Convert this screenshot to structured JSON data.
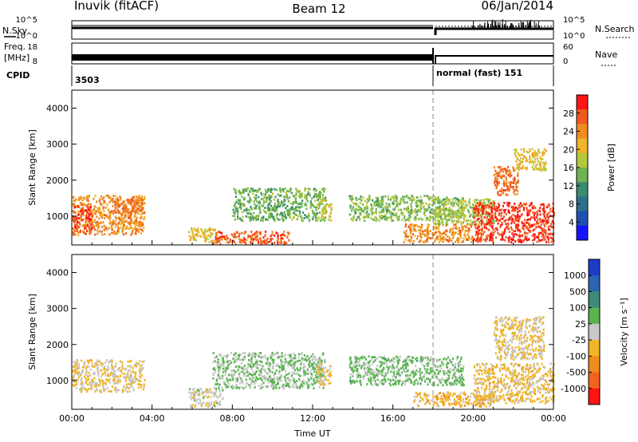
{
  "header": {
    "station": "Inuvik (fitACF)",
    "beam": "Beam 12",
    "date": "06/Jan/2014"
  },
  "status": {
    "nsky_label": "N.Sky",
    "nsearch_label": "N.Search",
    "freq_label_1": "Freq.",
    "freq_label_2": "[MHz]",
    "nave_label": "Nave",
    "cpid_label": "CPID",
    "cpid_first": "3503",
    "cpid_second": "normal (fast) 151",
    "noise_ticks": [
      "10^5",
      "10^0"
    ],
    "search_ticks": [
      "10^5",
      "10^0"
    ],
    "freq_ticks": [
      "18",
      "8"
    ],
    "nave_ticks": [
      "60",
      "0"
    ]
  },
  "colors": {
    "power_scale": [
      "#1414ff",
      "#1e50b4",
      "#2d6e8c",
      "#3c8c6e",
      "#6eb450",
      "#b4c83c",
      "#f0b428",
      "#f08c1e",
      "#f05a1e",
      "#ff1414"
    ],
    "velocity_scale": [
      "#1e3cc8",
      "#2d64b4",
      "#3c8c78",
      "#5ab450",
      "#c8c8c8",
      "#f0b428",
      "#f08c1e",
      "#f0641e",
      "#ff1414"
    ]
  },
  "chart_data": [
    {
      "type": "heatmap",
      "title": "",
      "ylabel": "Slant Range [km]",
      "xlabel": "",
      "ylim": [
        200,
        4500
      ],
      "yticks": [
        1000,
        2000,
        3000,
        4000
      ],
      "xlim_hours": [
        0,
        24
      ],
      "colorbar": {
        "label": "Power [dB]",
        "range": [
          0,
          32
        ],
        "ticks": [
          4,
          8,
          12,
          16,
          20,
          24,
          28
        ]
      },
      "regions": [
        {
          "t": [
            0.0,
            3.6
          ],
          "r": [
            500,
            1600
          ],
          "v": 24
        },
        {
          "t": [
            0.0,
            1.0
          ],
          "r": [
            600,
            1300
          ],
          "v": 28
        },
        {
          "t": [
            2.0,
            3.6
          ],
          "r": [
            1100,
            1500
          ],
          "v": 26
        },
        {
          "t": [
            5.8,
            7.2
          ],
          "r": [
            300,
            700
          ],
          "v": 20
        },
        {
          "t": [
            7.0,
            10.8
          ],
          "r": [
            250,
            600
          ],
          "v": 27
        },
        {
          "t": [
            8.0,
            12.6
          ],
          "r": [
            900,
            1800
          ],
          "v": 14
        },
        {
          "t": [
            12.2,
            12.9
          ],
          "r": [
            900,
            1500
          ],
          "v": 18
        },
        {
          "t": [
            13.8,
            19.5
          ],
          "r": [
            900,
            1600
          ],
          "v": 15
        },
        {
          "t": [
            16.5,
            20.5
          ],
          "r": [
            300,
            800
          ],
          "v": 24
        },
        {
          "t": [
            18.0,
            21.0
          ],
          "r": [
            800,
            1500
          ],
          "v": 17
        },
        {
          "t": [
            20.0,
            24.0
          ],
          "r": [
            300,
            1400
          ],
          "v": 29
        },
        {
          "t": [
            21.0,
            22.2
          ],
          "r": [
            1600,
            2400
          ],
          "v": 26
        },
        {
          "t": [
            22.0,
            23.6
          ],
          "r": [
            2300,
            2900
          ],
          "v": 20
        }
      ]
    },
    {
      "type": "heatmap",
      "title": "",
      "ylabel": "Slant Range [km]",
      "xlabel": "Time UT",
      "ylim": [
        200,
        4500
      ],
      "yticks": [
        1000,
        2000,
        3000,
        4000
      ],
      "xlim_hours": [
        0,
        24
      ],
      "xticks": [
        "00:00",
        "04:00",
        "08:00",
        "12:00",
        "16:00",
        "20:00",
        "00:00"
      ],
      "colorbar": {
        "label": "Velocity [m s⁻¹]",
        "range": [
          -1200,
          1200
        ],
        "ticks": [
          1000,
          500,
          100,
          25,
          -25,
          -100,
          -500,
          -1000
        ]
      },
      "regions": [
        {
          "t": [
            0.0,
            3.6
          ],
          "r": [
            700,
            1600
          ],
          "v": -150
        },
        {
          "t": [
            5.8,
            7.5
          ],
          "r": [
            300,
            800
          ],
          "v": 0
        },
        {
          "t": [
            7.0,
            12.6
          ],
          "r": [
            800,
            1800
          ],
          "v": 150
        },
        {
          "t": [
            12.2,
            12.9
          ],
          "r": [
            900,
            1500
          ],
          "v": -150
        },
        {
          "t": [
            13.8,
            19.5
          ],
          "r": [
            900,
            1700
          ],
          "v": 200
        },
        {
          "t": [
            17.0,
            21.0
          ],
          "r": [
            300,
            700
          ],
          "v": -300
        },
        {
          "t": [
            20.0,
            24.0
          ],
          "r": [
            400,
            1500
          ],
          "v": -200
        },
        {
          "t": [
            21.0,
            23.5
          ],
          "r": [
            1600,
            2800
          ],
          "v": -150
        }
      ]
    }
  ]
}
